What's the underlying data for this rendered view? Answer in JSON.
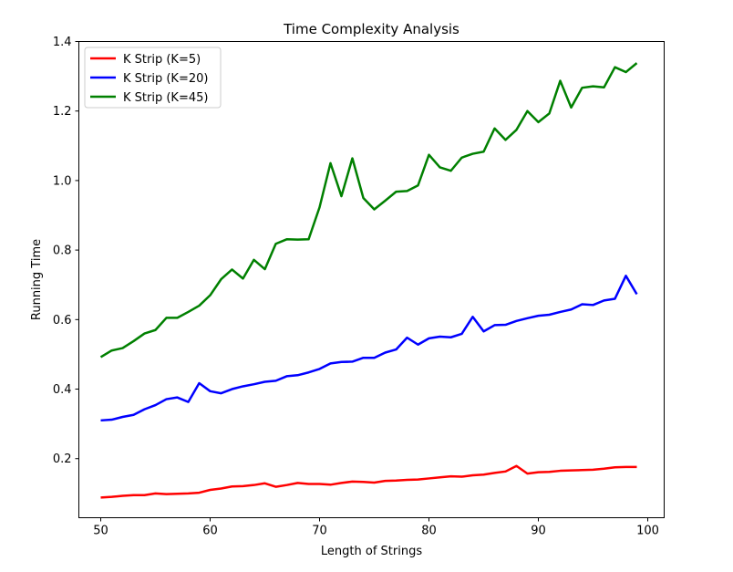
{
  "chart_data": {
    "type": "line",
    "title": "Time Complexity Analysis",
    "xlabel": "Length of Strings",
    "ylabel": "Running Time",
    "xlim": [
      48.0,
      101.5
    ],
    "ylim": [
      0.03,
      1.4
    ],
    "xticks": [
      50,
      60,
      70,
      80,
      90,
      100
    ],
    "yticks": [
      0.2,
      0.4,
      0.6,
      0.8,
      1.0,
      1.2,
      1.4
    ],
    "xtick_labels": [
      "50",
      "60",
      "70",
      "80",
      "90",
      "100"
    ],
    "ytick_labels": [
      "0.2",
      "0.4",
      "0.6",
      "0.8",
      "1.0",
      "1.2",
      "1.4"
    ],
    "grid": false,
    "legend_position": "top-left",
    "x": [
      50,
      51,
      52,
      53,
      54,
      55,
      56,
      57,
      58,
      59,
      60,
      61,
      62,
      63,
      64,
      65,
      66,
      67,
      68,
      69,
      70,
      71,
      72,
      73,
      74,
      75,
      76,
      77,
      78,
      79,
      80,
      81,
      82,
      83,
      84,
      85,
      86,
      87,
      88,
      89,
      90,
      91,
      92,
      93,
      94,
      95,
      96,
      97,
      98,
      99
    ],
    "series": [
      {
        "name": "K Strip (K=5)",
        "color": "#ff0000",
        "values": [
          0.088,
          0.09,
          0.093,
          0.095,
          0.095,
          0.1,
          0.098,
          0.099,
          0.1,
          0.102,
          0.11,
          0.114,
          0.12,
          0.121,
          0.124,
          0.129,
          0.119,
          0.124,
          0.13,
          0.127,
          0.127,
          0.125,
          0.13,
          0.134,
          0.133,
          0.131,
          0.136,
          0.137,
          0.139,
          0.14,
          0.143,
          0.146,
          0.149,
          0.148,
          0.152,
          0.154,
          0.159,
          0.163,
          0.179,
          0.157,
          0.161,
          0.162,
          0.165,
          0.166,
          0.167,
          0.168,
          0.171,
          0.175,
          0.176,
          0.176
        ]
      },
      {
        "name": "K Strip (K=20)",
        "color": "#0000ff",
        "values": [
          0.31,
          0.312,
          0.32,
          0.326,
          0.342,
          0.354,
          0.371,
          0.376,
          0.363,
          0.417,
          0.394,
          0.388,
          0.4,
          0.408,
          0.414,
          0.421,
          0.424,
          0.437,
          0.44,
          0.448,
          0.458,
          0.474,
          0.478,
          0.479,
          0.49,
          0.49,
          0.505,
          0.514,
          0.548,
          0.528,
          0.546,
          0.551,
          0.549,
          0.559,
          0.608,
          0.566,
          0.584,
          0.585,
          0.596,
          0.604,
          0.611,
          0.614,
          0.622,
          0.629,
          0.644,
          0.642,
          0.655,
          0.66,
          0.726,
          0.673
        ]
      },
      {
        "name": "K Strip (K=45)",
        "color": "#008000",
        "values": [
          0.492,
          0.511,
          0.518,
          0.538,
          0.56,
          0.57,
          0.605,
          0.605,
          0.622,
          0.64,
          0.67,
          0.716,
          0.744,
          0.718,
          0.772,
          0.745,
          0.818,
          0.831,
          0.83,
          0.831,
          0.923,
          1.05,
          0.955,
          1.064,
          0.95,
          0.917,
          0.942,
          0.968,
          0.97,
          0.986,
          1.074,
          1.038,
          1.028,
          1.066,
          1.077,
          1.083,
          1.15,
          1.117,
          1.146,
          1.2,
          1.168,
          1.193,
          1.287,
          1.21,
          1.267,
          1.271,
          1.268,
          1.326,
          1.312,
          1.338
        ]
      }
    ]
  }
}
